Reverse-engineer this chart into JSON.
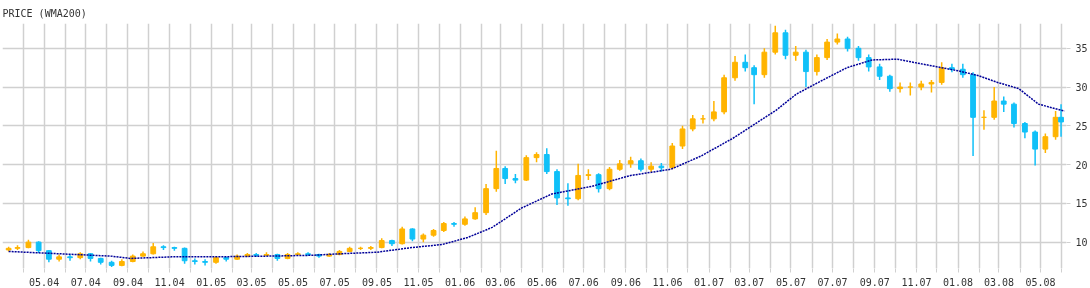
{
  "chart_data": {
    "type": "candlestick",
    "title": "PRICE (WMA200)",
    "x": [
      "2004-03-10",
      "2004-03-23",
      "2004-04-08",
      "2004-04-23",
      "2004-05-08",
      "2004-05-23",
      "2004-06-08",
      "2004-06-23",
      "2004-07-08",
      "2004-07-23",
      "2004-08-08",
      "2004-08-23",
      "2004-09-08",
      "2004-09-23",
      "2004-10-08",
      "2004-10-23",
      "2004-11-08",
      "2004-11-23",
      "2004-12-08",
      "2004-12-23",
      "2005-01-08",
      "2005-01-23",
      "2005-02-08",
      "2005-02-23",
      "2005-03-08",
      "2005-03-23",
      "2005-04-08",
      "2005-04-23",
      "2005-05-08",
      "2005-05-23",
      "2005-06-08",
      "2005-06-23",
      "2005-07-08",
      "2005-07-23",
      "2005-08-08",
      "2005-08-23",
      "2005-09-08",
      "2005-09-23",
      "2005-10-08",
      "2005-10-23",
      "2005-11-08",
      "2005-11-23",
      "2005-12-08",
      "2005-12-23",
      "2006-01-08",
      "2006-01-23",
      "2006-02-08",
      "2006-02-23",
      "2006-03-08",
      "2006-03-23",
      "2006-04-08",
      "2006-04-23",
      "2006-05-08",
      "2006-05-23",
      "2006-06-08",
      "2006-06-23",
      "2006-07-08",
      "2006-07-23",
      "2006-08-08",
      "2006-08-23",
      "2006-09-08",
      "2006-09-23",
      "2006-10-08",
      "2006-10-23",
      "2006-11-08",
      "2006-11-23",
      "2006-12-08",
      "2006-12-23",
      "2007-01-08",
      "2007-01-23",
      "2007-02-08",
      "2007-02-23",
      "2007-03-08",
      "2007-03-23",
      "2007-04-08",
      "2007-04-23",
      "2007-05-08",
      "2007-05-23",
      "2007-06-08",
      "2007-06-23",
      "2007-07-08",
      "2007-07-23",
      "2007-08-08",
      "2007-08-23",
      "2007-09-08",
      "2007-09-23",
      "2007-10-08",
      "2007-10-23",
      "2007-11-08",
      "2007-11-23",
      "2007-12-08",
      "2007-12-23",
      "2008-01-08",
      "2008-01-23",
      "2008-02-08",
      "2008-02-23",
      "2008-03-08",
      "2008-03-23",
      "2008-04-08",
      "2008-04-23",
      "2008-05-08",
      "2008-05-23",
      "2008-05-31"
    ],
    "ohlc": [
      [
        9.0,
        9.4,
        8.8,
        9.2
      ],
      [
        9.2,
        9.6,
        9.0,
        9.3
      ],
      [
        9.3,
        10.3,
        9.2,
        10.0
      ],
      [
        10.0,
        10.1,
        8.6,
        8.9
      ],
      [
        8.9,
        9.0,
        7.4,
        7.8
      ],
      [
        7.8,
        8.4,
        7.5,
        8.1
      ],
      [
        8.1,
        8.4,
        7.6,
        8.0
      ],
      [
        8.0,
        8.7,
        7.8,
        8.5
      ],
      [
        8.5,
        8.6,
        7.5,
        7.9
      ],
      [
        7.9,
        8.0,
        7.1,
        7.4
      ],
      [
        7.4,
        7.6,
        6.8,
        7.0
      ],
      [
        7.0,
        7.8,
        6.9,
        7.5
      ],
      [
        7.5,
        8.4,
        7.4,
        8.2
      ],
      [
        8.2,
        8.8,
        8.1,
        8.5
      ],
      [
        8.5,
        9.9,
        8.4,
        9.4
      ],
      [
        9.4,
        9.6,
        9.0,
        9.3
      ],
      [
        9.3,
        9.4,
        8.9,
        9.2
      ],
      [
        9.2,
        9.3,
        7.2,
        7.6
      ],
      [
        7.6,
        7.9,
        7.1,
        7.5
      ],
      [
        7.5,
        7.8,
        7.0,
        7.4
      ],
      [
        7.4,
        8.2,
        7.2,
        8.0
      ],
      [
        8.0,
        8.1,
        7.5,
        7.8
      ],
      [
        7.8,
        8.4,
        7.7,
        8.2
      ],
      [
        8.2,
        8.6,
        8.1,
        8.4
      ],
      [
        8.4,
        8.6,
        8.1,
        8.3
      ],
      [
        8.3,
        8.7,
        8.2,
        8.4
      ],
      [
        8.4,
        8.5,
        7.6,
        7.9
      ],
      [
        7.9,
        8.6,
        7.8,
        8.4
      ],
      [
        8.4,
        8.7,
        8.3,
        8.5
      ],
      [
        8.5,
        8.7,
        8.2,
        8.4
      ],
      [
        8.4,
        8.5,
        8.0,
        8.2
      ],
      [
        8.2,
        8.6,
        8.1,
        8.4
      ],
      [
        8.4,
        9.0,
        8.3,
        8.8
      ],
      [
        8.8,
        9.4,
        8.7,
        9.2
      ],
      [
        9.2,
        9.4,
        9.0,
        9.2
      ],
      [
        9.2,
        9.5,
        9.0,
        9.3
      ],
      [
        9.3,
        10.5,
        9.2,
        10.2
      ],
      [
        10.2,
        10.3,
        9.5,
        9.8
      ],
      [
        9.8,
        12.0,
        9.7,
        11.7
      ],
      [
        11.7,
        11.8,
        10.1,
        10.4
      ],
      [
        10.4,
        11.1,
        10.0,
        10.9
      ],
      [
        10.9,
        11.7,
        10.7,
        11.5
      ],
      [
        11.5,
        12.6,
        11.3,
        12.4
      ],
      [
        12.4,
        12.6,
        12.0,
        12.3
      ],
      [
        12.3,
        13.3,
        12.1,
        13.0
      ],
      [
        13.0,
        14.5,
        12.9,
        13.8
      ],
      [
        13.8,
        17.5,
        13.5,
        16.9
      ],
      [
        16.9,
        21.8,
        16.5,
        19.5
      ],
      [
        19.5,
        19.8,
        17.5,
        18.2
      ],
      [
        18.2,
        18.8,
        17.6,
        18.0
      ],
      [
        18.0,
        21.2,
        17.9,
        20.9
      ],
      [
        20.9,
        21.6,
        20.3,
        21.3
      ],
      [
        21.3,
        22.1,
        18.8,
        19.1
      ],
      [
        19.1,
        19.4,
        14.8,
        15.7
      ],
      [
        15.7,
        17.6,
        14.7,
        15.6
      ],
      [
        15.6,
        20.1,
        15.4,
        18.6
      ],
      [
        18.6,
        19.4,
        18.0,
        18.7
      ],
      [
        18.7,
        18.9,
        16.4,
        16.9
      ],
      [
        16.9,
        19.7,
        16.7,
        19.4
      ],
      [
        19.4,
        20.6,
        19.2,
        20.1
      ],
      [
        20.1,
        21.0,
        19.6,
        20.5
      ],
      [
        20.5,
        20.8,
        19.1,
        19.4
      ],
      [
        19.4,
        20.3,
        19.0,
        19.8
      ],
      [
        19.8,
        20.2,
        19.1,
        19.6
      ],
      [
        19.6,
        22.8,
        19.4,
        22.4
      ],
      [
        22.4,
        25.0,
        22.0,
        24.6
      ],
      [
        24.6,
        26.4,
        24.3,
        25.9
      ],
      [
        25.9,
        26.4,
        25.3,
        25.9
      ],
      [
        25.9,
        28.2,
        25.6,
        26.8
      ],
      [
        26.8,
        31.6,
        26.5,
        31.2
      ],
      [
        31.2,
        34.0,
        30.8,
        33.2
      ],
      [
        33.2,
        34.2,
        32.0,
        32.5
      ],
      [
        32.5,
        32.8,
        27.8,
        31.6
      ],
      [
        31.6,
        35.0,
        31.2,
        34.5
      ],
      [
        34.5,
        37.9,
        34.2,
        37.0
      ],
      [
        37.0,
        37.4,
        33.6,
        34.1
      ],
      [
        34.1,
        35.3,
        33.4,
        34.5
      ],
      [
        34.5,
        34.8,
        30.0,
        32.0
      ],
      [
        32.0,
        34.2,
        31.5,
        33.8
      ],
      [
        33.8,
        36.2,
        33.5,
        35.8
      ],
      [
        35.8,
        36.9,
        35.5,
        36.2
      ],
      [
        36.2,
        36.5,
        34.6,
        35.0
      ],
      [
        35.0,
        35.3,
        33.4,
        33.8
      ],
      [
        33.8,
        34.2,
        32.0,
        32.6
      ],
      [
        32.6,
        33.0,
        30.9,
        31.4
      ],
      [
        31.4,
        31.6,
        29.4,
        29.8
      ],
      [
        29.8,
        30.6,
        29.3,
        30.0
      ],
      [
        30.0,
        30.6,
        28.9,
        30.0
      ],
      [
        30.0,
        30.8,
        29.6,
        30.4
      ],
      [
        30.4,
        30.9,
        29.3,
        30.6
      ],
      [
        30.6,
        33.2,
        30.3,
        32.5
      ],
      [
        32.5,
        33.0,
        31.9,
        32.3
      ],
      [
        32.3,
        33.0,
        31.2,
        31.6
      ],
      [
        31.6,
        31.9,
        21.1,
        26.1
      ],
      [
        26.1,
        27.0,
        24.5,
        26.1
      ],
      [
        26.1,
        30.0,
        25.8,
        28.2
      ],
      [
        28.2,
        28.8,
        26.8,
        27.8
      ],
      [
        27.8,
        28.0,
        24.8,
        25.3
      ],
      [
        25.3,
        25.5,
        23.4,
        24.2
      ],
      [
        24.2,
        24.4,
        19.9,
        22.0
      ],
      [
        22.0,
        24.0,
        21.5,
        23.6
      ],
      [
        23.6,
        26.9,
        23.2,
        26.1
      ],
      [
        26.1,
        27.8,
        23.6,
        25.5
      ]
    ],
    "series": [
      {
        "type": "line",
        "color": "#000099",
        "line_style": "dotted",
        "x": [
          "2004-03-10",
          "2004-08-06",
          "2004-09-05",
          "2004-11-04",
          "2005-01-01",
          "2005-03-29",
          "2005-05-27",
          "2005-07-10",
          "2005-09-01",
          "2005-10-22",
          "2005-12-06",
          "2006-01-12",
          "2006-02-17",
          "2006-04-01",
          "2006-05-15",
          "2006-07-13",
          "2006-09-08",
          "2006-11-06",
          "2006-12-20",
          "2007-02-05",
          "2007-04-09",
          "2007-05-09",
          "2007-06-08",
          "2007-07-22",
          "2007-08-28",
          "2007-10-04",
          "2007-11-02",
          "2008-01-01",
          "2008-01-30",
          "2008-02-28",
          "2008-03-30",
          "2008-04-28",
          "2008-06-05"
        ],
        "values": [
          8.8,
          8.2,
          7.9,
          8.1,
          8.1,
          8.2,
          8.3,
          8.5,
          8.7,
          9.3,
          9.7,
          10.6,
          11.9,
          14.4,
          16.2,
          17.2,
          18.6,
          19.4,
          21.1,
          23.4,
          27.0,
          29.1,
          30.5,
          32.5,
          33.5,
          33.6,
          33.1,
          32.1,
          31.5,
          30.6,
          29.8,
          27.8,
          26.9
        ]
      }
    ],
    "xlim": [
      "2004-03-01",
      "2008-06-08"
    ],
    "xticks": [
      {
        "value": "2004-04",
        "label": null
      },
      {
        "value": "2004-05",
        "label": "05.04"
      },
      {
        "value": "2004-06",
        "label": null
      },
      {
        "value": "2004-07",
        "label": "07.04"
      },
      {
        "value": "2004-08",
        "label": null
      },
      {
        "value": "2004-09",
        "label": "09.04"
      },
      {
        "value": "2004-10",
        "label": null
      },
      {
        "value": "2004-11",
        "label": "11.04"
      },
      {
        "value": "2004-12",
        "label": null
      },
      {
        "value": "2005-01",
        "label": "01.05"
      },
      {
        "value": "2005-02",
        "label": null
      },
      {
        "value": "2005-03",
        "label": "03.05"
      },
      {
        "value": "2005-04",
        "label": null
      },
      {
        "value": "2005-05",
        "label": "05.05"
      },
      {
        "value": "2005-06",
        "label": null
      },
      {
        "value": "2005-07",
        "label": "07.05"
      },
      {
        "value": "2005-08",
        "label": null
      },
      {
        "value": "2005-09",
        "label": "09.05"
      },
      {
        "value": "2005-10",
        "label": null
      },
      {
        "value": "2005-11",
        "label": "11.05"
      },
      {
        "value": "2005-12",
        "label": null
      },
      {
        "value": "2006-01",
        "label": "01.06"
      },
      {
        "value": "2006-02",
        "label": null
      },
      {
        "value": "2006-03",
        "label": "03.06"
      },
      {
        "value": "2006-04",
        "label": null
      },
      {
        "value": "2006-05",
        "label": "05.06"
      },
      {
        "value": "2006-06",
        "label": null
      },
      {
        "value": "2006-07",
        "label": "07.06"
      },
      {
        "value": "2006-08",
        "label": null
      },
      {
        "value": "2006-09",
        "label": "09.06"
      },
      {
        "value": "2006-10",
        "label": null
      },
      {
        "value": "2006-11",
        "label": "11.06"
      },
      {
        "value": "2006-12",
        "label": null
      },
      {
        "value": "2007-01",
        "label": "01.07"
      },
      {
        "value": "2007-02",
        "label": null
      },
      {
        "value": "2007-03",
        "label": "03.07"
      },
      {
        "value": "2007-04",
        "label": null
      },
      {
        "value": "2007-05",
        "label": "05.07"
      },
      {
        "value": "2007-06",
        "label": null
      },
      {
        "value": "2007-07",
        "label": "07.07"
      },
      {
        "value": "2007-08",
        "label": null
      },
      {
        "value": "2007-09",
        "label": "09.07"
      },
      {
        "value": "2007-10",
        "label": null
      },
      {
        "value": "2007-11",
        "label": "11.07"
      },
      {
        "value": "2007-12",
        "label": null
      },
      {
        "value": "2008-01",
        "label": "01.08"
      },
      {
        "value": "2008-02",
        "label": null
      },
      {
        "value": "2008-03",
        "label": "03.08"
      },
      {
        "value": "2008-04",
        "label": null
      },
      {
        "value": "2008-05",
        "label": "05.08"
      },
      {
        "value": "2008-06",
        "label": null
      }
    ],
    "ylim": [
      6.6,
      38.2
    ],
    "yticks": [
      10,
      15,
      20,
      25,
      30,
      35
    ],
    "grid": true,
    "marker": "none"
  }
}
